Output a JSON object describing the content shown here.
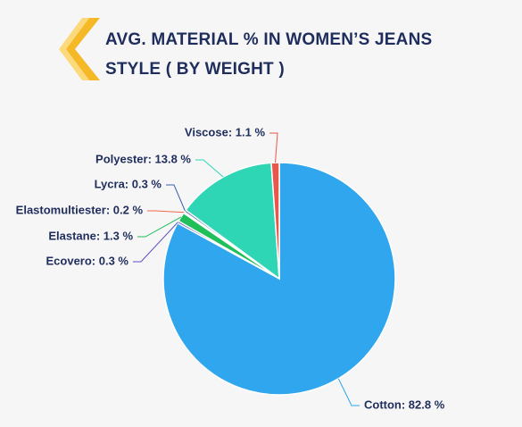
{
  "chart_data": {
    "type": "pie",
    "title": "AVG. MATERIAL % IN WOMEN’S JEANS STYLE ( BY WEIGHT )",
    "categories": [
      "Cotton",
      "Ecovero",
      "Elastane",
      "Elastomultiester",
      "Lycra",
      "Polyester",
      "Viscose"
    ],
    "values": [
      82.8,
      0.3,
      1.3,
      0.2,
      0.3,
      13.8,
      1.1
    ],
    "value_labels": [
      "Cotton: 82.8 %",
      "Ecovero: 0.3 %",
      "Elastane: 1.3 %",
      "Elastomultiester: 0.2 %",
      "Lycra: 0.3 %",
      "Polyester: 13.8 %",
      "Viscose: 1.1 %"
    ],
    "colors": [
      "#2fa6ee",
      "#5b4fc4",
      "#1fbf5a",
      "#ef6a4a",
      "#3d5fa8",
      "#2fd6b5",
      "#e8574c"
    ]
  }
}
